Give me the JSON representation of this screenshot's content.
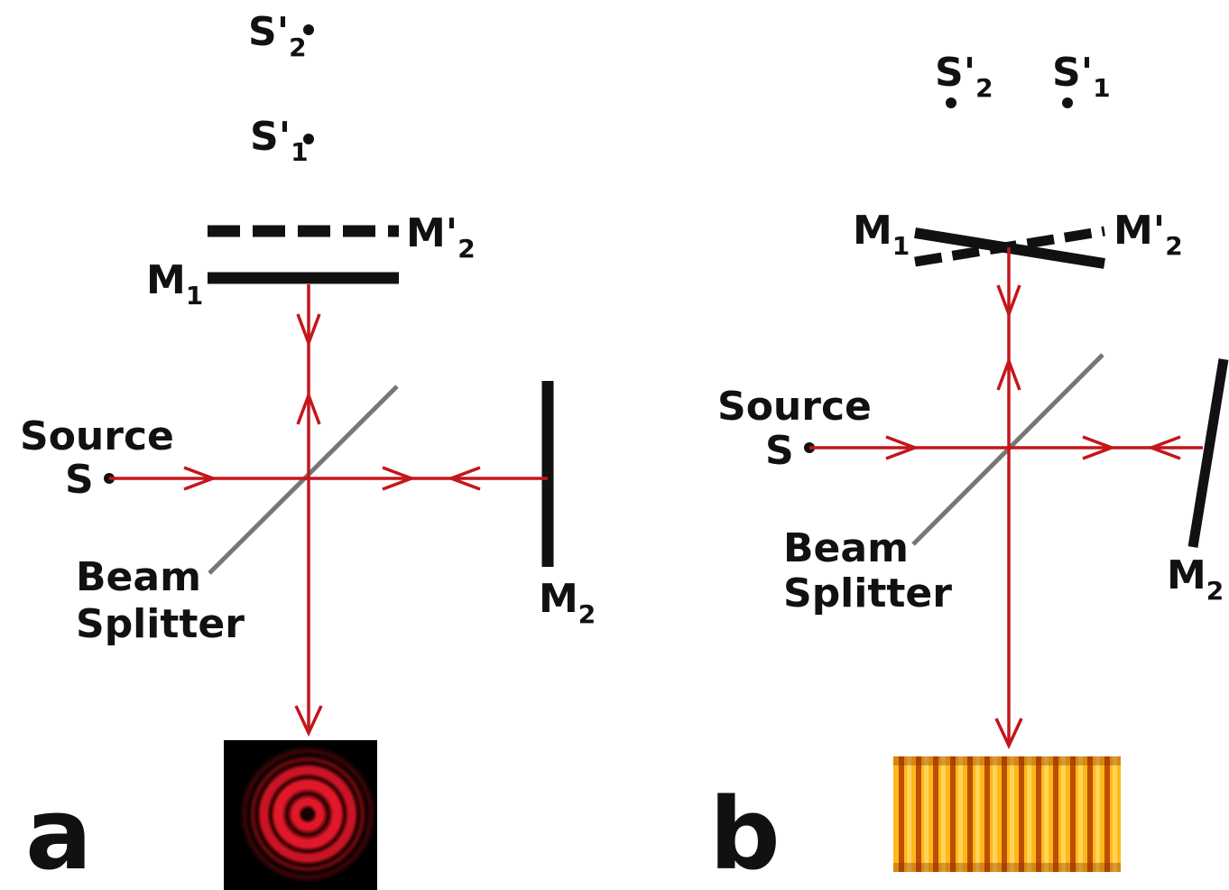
{
  "colors": {
    "beam": "#c4161c",
    "mirror": "#111111",
    "splitter": "#777777",
    "text": "#111111",
    "ring": "#e0182a",
    "fringe_bright": "#ffc21a",
    "fringe_dark": "#b23c00"
  },
  "panel_a": {
    "label": "a",
    "s2_image": {
      "main": "S'",
      "sub": "2"
    },
    "s1_image": {
      "main": "S'",
      "sub": "1"
    },
    "m2_image": {
      "main": "M'",
      "sub": "2"
    },
    "m1": {
      "main": "M",
      "sub": "1"
    },
    "m2": {
      "main": "M",
      "sub": "2"
    },
    "source_line1": "Source",
    "source_line2": "S",
    "beam_splitter_line1": "Beam",
    "beam_splitter_line2": "Splitter",
    "pattern": "circular-fringes"
  },
  "panel_b": {
    "label": "b",
    "s2_image": {
      "main": "S'",
      "sub": "2"
    },
    "s1_image": {
      "main": "S'",
      "sub": "1"
    },
    "m1": {
      "main": "M",
      "sub": "1"
    },
    "m2_image": {
      "main": "M'",
      "sub": "2"
    },
    "m2": {
      "main": "M",
      "sub": "2"
    },
    "source_line1": "Source",
    "source_line2": "S",
    "beam_splitter_line1": "Beam",
    "beam_splitter_line2": "Splitter",
    "pattern": "straight-fringes"
  }
}
